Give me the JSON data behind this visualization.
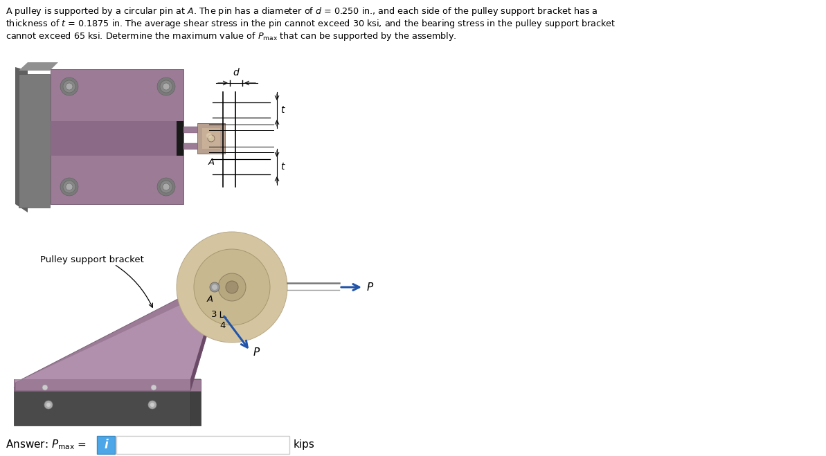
{
  "bg_color": "#ffffff",
  "text_color": "#000000",
  "bracket_color": "#9B7B96",
  "bracket_dark": "#7a5f76",
  "bracket_side": "#6a4a66",
  "wall_color": "#7a7a7a",
  "wall_light": "#909090",
  "wall_dark": "#606060",
  "slot_color": "#8a6a86",
  "black_end": "#1a1a1a",
  "pulley_outer": "#D4C5A0",
  "pulley_mid": "#C8B890",
  "pulley_hub": "#B8A880",
  "pulley_groove": "#A09070",
  "pin_color": "#B8A090",
  "pin_shaft": "#C8B0A0",
  "bolt_color": "#7a7a7a",
  "bolt_inner": "#999999",
  "base_color": "#4a4a4a",
  "base_top": "#606060",
  "base_face": "#555555",
  "rope_color": "#888888",
  "rope_color2": "#aaaaaa",
  "blue_arrow": "#2255AA",
  "input_box_blue": "#4da6e8",
  "line_color": "#555555",
  "dim_line": "#888888",
  "small_bolt_color": "#aaaaaa",
  "label_A": "A",
  "label_d": "d",
  "label_t": "t",
  "label_3": "3",
  "label_4": "4",
  "label_P": "P",
  "bracket_label": "Pulley support bracket",
  "kips_label": "kips"
}
